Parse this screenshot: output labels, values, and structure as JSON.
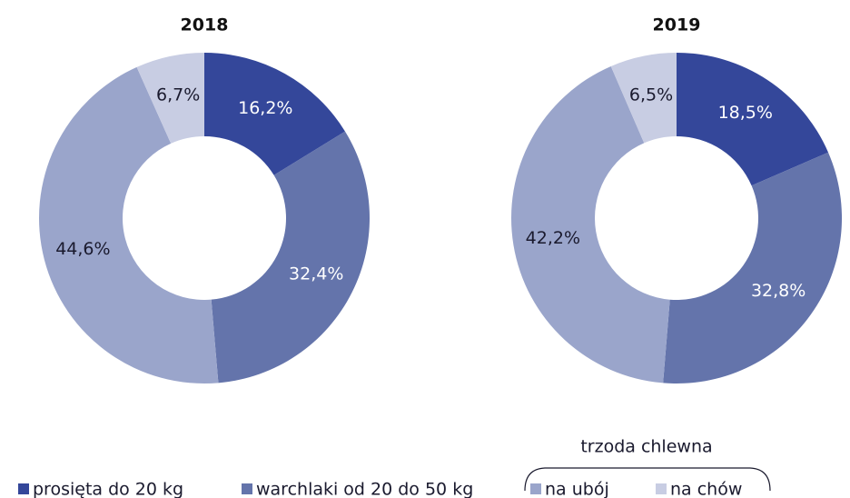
{
  "chart_data": [
    {
      "type": "pie",
      "title": "2018",
      "values": [
        16.2,
        32.4,
        44.6,
        6.7
      ],
      "value_labels": [
        "16,2%",
        "32,4%",
        "44,6%",
        "6,7%"
      ],
      "colors": [
        "#34479a",
        "#6474ab",
        "#9aa5cb",
        "#c8cde3"
      ],
      "donut": true
    },
    {
      "type": "pie",
      "title": "2019",
      "values": [
        18.5,
        32.8,
        42.2,
        6.5
      ],
      "value_labels": [
        "18,5%",
        "32,8%",
        "42,2%",
        "6,5%"
      ],
      "colors": [
        "#34479a",
        "#6474ab",
        "#9aa5cb",
        "#c8cde3"
      ],
      "donut": true
    }
  ],
  "legend": {
    "items": [
      "prosięta do 20 kg",
      "warchlaki od 20 do 50 kg",
      "na ubój",
      "na chów"
    ],
    "group_label": "trzoda chlewna"
  }
}
